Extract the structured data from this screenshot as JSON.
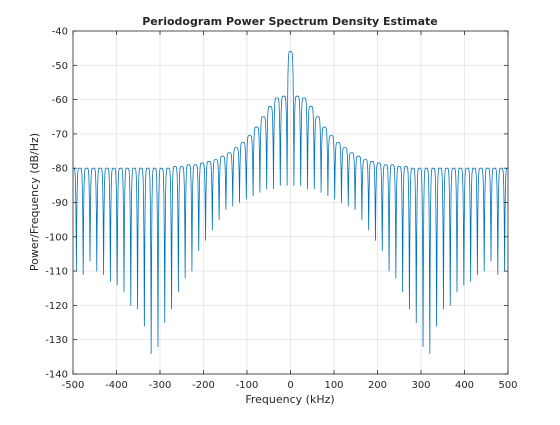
{
  "chart_data": {
    "type": "line",
    "title": "Periodogram Power Spectrum Density Estimate",
    "xlabel": "Frequency (kHz)",
    "ylabel": "Power/Frequency (dB/Hz)",
    "xlim": [
      -500,
      500
    ],
    "ylim": [
      -140,
      -40
    ],
    "xticks": [
      -500,
      -400,
      -300,
      -200,
      -100,
      0,
      100,
      200,
      300,
      400,
      500
    ],
    "yticks": [
      -140,
      -130,
      -120,
      -110,
      -100,
      -90,
      -80,
      -70,
      -60,
      -50,
      -40
    ],
    "grid": true,
    "series": [
      {
        "color": "#0072BD",
        "lobe_spacing_khz": 15.625,
        "lobe_peaks": [
          [
            -500,
            -80
          ],
          [
            -484.4,
            -80
          ],
          [
            -468.8,
            -80
          ],
          [
            -453.1,
            -80
          ],
          [
            -437.5,
            -80
          ],
          [
            -421.9,
            -80
          ],
          [
            -406.3,
            -80
          ],
          [
            -390.6,
            -80
          ],
          [
            -375,
            -80
          ],
          [
            -359.4,
            -80
          ],
          [
            -343.8,
            -80
          ],
          [
            -328.1,
            -80
          ],
          [
            -312.5,
            -80
          ],
          [
            -296.9,
            -80
          ],
          [
            -281.3,
            -80
          ],
          [
            -265.6,
            -79.5
          ],
          [
            -250,
            -79.5
          ],
          [
            -234.4,
            -79
          ],
          [
            -218.8,
            -79
          ],
          [
            -203.1,
            -78.5
          ],
          [
            -187.5,
            -78
          ],
          [
            -171.9,
            -77.5
          ],
          [
            -156.3,
            -76.5
          ],
          [
            -140.6,
            -75.5
          ],
          [
            -125,
            -74
          ],
          [
            -109.4,
            -72.5
          ],
          [
            -93.8,
            -70.5
          ],
          [
            -78.1,
            -68
          ],
          [
            -62.5,
            -65
          ],
          [
            -46.9,
            -62
          ],
          [
            -31.3,
            -59.5
          ],
          [
            -15.6,
            -59
          ],
          [
            0,
            -46
          ],
          [
            15.6,
            -59
          ],
          [
            31.3,
            -59.5
          ],
          [
            46.9,
            -62
          ],
          [
            62.5,
            -65
          ],
          [
            78.1,
            -68
          ],
          [
            93.8,
            -70.5
          ],
          [
            109.4,
            -72.5
          ],
          [
            125,
            -74
          ],
          [
            140.6,
            -75.5
          ],
          [
            156.3,
            -76.5
          ],
          [
            171.9,
            -77.5
          ],
          [
            187.5,
            -78
          ],
          [
            203.1,
            -78.5
          ],
          [
            218.8,
            -79
          ],
          [
            234.4,
            -79
          ],
          [
            250,
            -79.5
          ],
          [
            265.6,
            -79.5
          ],
          [
            281.3,
            -80
          ],
          [
            296.9,
            -80
          ],
          [
            312.5,
            -80
          ],
          [
            328.1,
            -80
          ],
          [
            343.8,
            -80
          ],
          [
            359.4,
            -80
          ],
          [
            375,
            -80
          ],
          [
            390.6,
            -80
          ],
          [
            406.3,
            -80
          ],
          [
            421.9,
            -80
          ],
          [
            437.5,
            -80
          ],
          [
            453.1,
            -80
          ],
          [
            468.8,
            -80
          ],
          [
            484.4,
            -80
          ],
          [
            500,
            -80
          ]
        ],
        "null_depths": [
          -110,
          -111,
          -107,
          -110,
          -111,
          -113,
          -114,
          -116,
          -120,
          -121,
          -126,
          -134,
          -132,
          -125,
          -121,
          -116,
          -112,
          -110,
          -104,
          -101,
          -98,
          -95,
          -92,
          -91,
          -90,
          -89,
          -88,
          -87,
          -86,
          -86,
          -85,
          -85,
          -85,
          -85,
          -86,
          -86,
          -87,
          -88,
          -89,
          -90,
          -91,
          -92,
          -95,
          -98,
          -101,
          -104,
          -110,
          -112,
          -116,
          -121,
          -125,
          -132,
          -134,
          -126,
          -121,
          -120,
          -116,
          -114,
          -113,
          -111,
          -110,
          -107,
          -111,
          -110
        ]
      }
    ]
  }
}
